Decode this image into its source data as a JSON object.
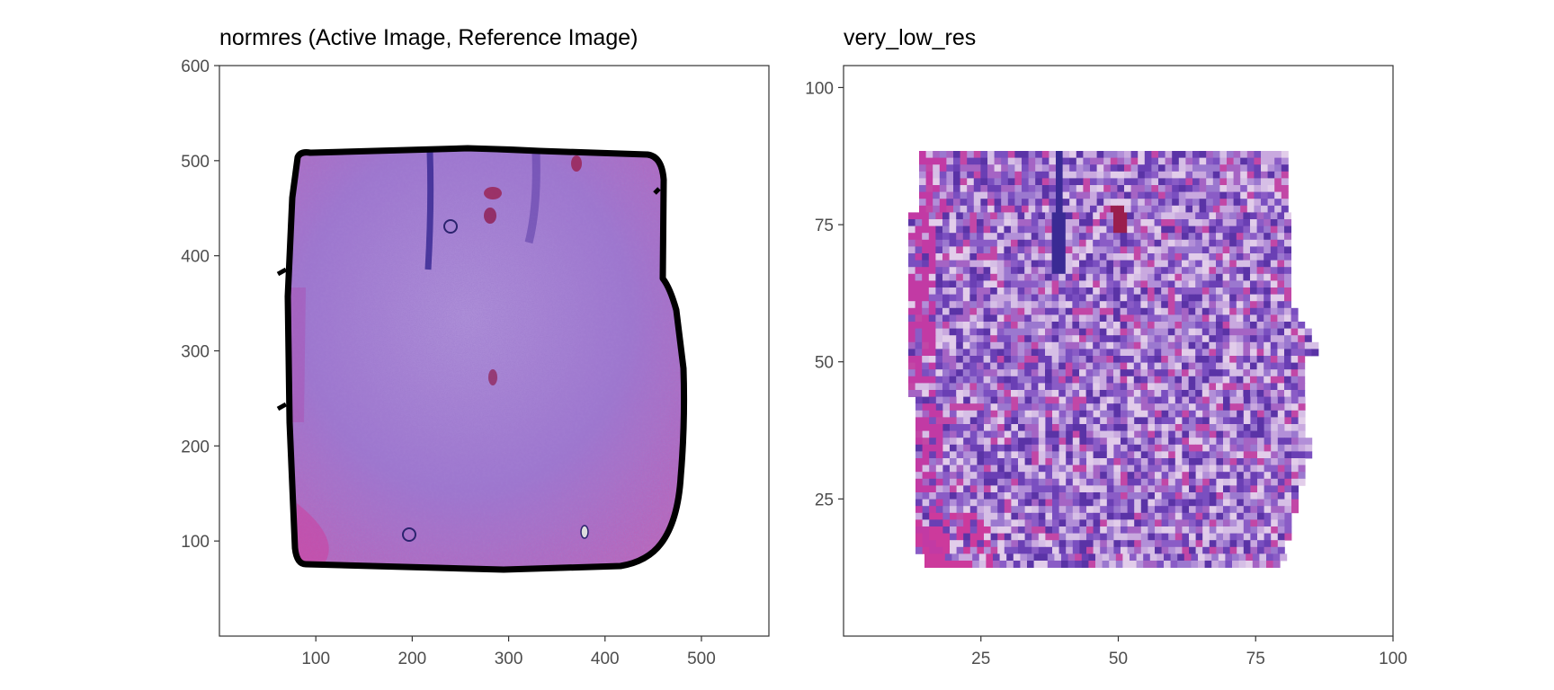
{
  "panels": [
    {
      "id": "normres",
      "title": "normres (Active Image, Reference Image)",
      "x_ticks": [
        100,
        200,
        300,
        400,
        500
      ],
      "y_ticks": [
        100,
        200,
        300,
        400,
        500,
        600
      ],
      "xlim": [
        0,
        570
      ],
      "ylim": [
        0,
        600
      ],
      "tissue_outline": true,
      "rendering": "fine"
    },
    {
      "id": "very_low_res",
      "title": "very_low_res",
      "x_ticks": [
        25,
        50,
        75,
        100
      ],
      "y_ticks": [
        25,
        50,
        75,
        100
      ],
      "xlim": [
        0,
        100
      ],
      "ylim": [
        0,
        104
      ],
      "tissue_outline": false,
      "rendering": "pixelated"
    }
  ],
  "colors": {
    "tissue_base": "#8a5cc6",
    "hematoxylin": "#4b2f9e",
    "eosin": "#cc3aa0",
    "light": "#d8c3e6",
    "outline": "#000000",
    "axis": "#333333",
    "tick_text": "#4d4d4d"
  }
}
